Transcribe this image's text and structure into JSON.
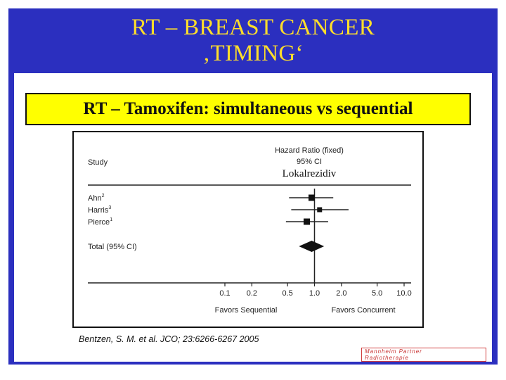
{
  "slide": {
    "title_line1": "RT – BREAST CANCER",
    "title_line2": "‚TIMING‘",
    "subtitle": "RT – Tamoxifen: simultaneous vs sequential",
    "citation": "Bentzen, S. M. et al. JCO; 23:6266-6267 2005",
    "logo_line1": "Mannheim Partner",
    "logo_line2": "Radiotherapie",
    "colors": {
      "background": "#2b2fbf",
      "title": "#ffde2a",
      "subtitle_box": "#ffff00",
      "content": "#ffffff"
    }
  },
  "chart_data": {
    "type": "forest",
    "column_header_left": "Study",
    "column_header_right_line1": "Hazard Ratio (fixed)",
    "column_header_right_line2": "95% CI",
    "annotation": "Lokalrezidiv",
    "scale": "log",
    "xlim": [
      0.1,
      10.0
    ],
    "xticks": [
      0.1,
      0.2,
      0.5,
      1.0,
      2.0,
      5.0,
      10.0
    ],
    "xtick_labels": [
      "0.1",
      "0.2",
      "0.5",
      "1.0",
      "2.0",
      "5.0",
      "10.0"
    ],
    "reference_line": 1.0,
    "xlabel_left": "Favors Sequential",
    "xlabel_right": "Favors Concurrent",
    "studies": [
      {
        "name": "Ahn",
        "ref": "2",
        "hr": 0.93,
        "ci_low": 0.52,
        "ci_high": 1.62
      },
      {
        "name": "Harris",
        "ref": "3",
        "hr": 1.14,
        "ci_low": 0.55,
        "ci_high": 2.4
      },
      {
        "name": "Pierce",
        "ref": "1",
        "hr": 0.82,
        "ci_low": 0.48,
        "ci_high": 1.42
      }
    ],
    "total": {
      "name": "Total (95% CI)",
      "hr": 0.93,
      "ci_low": 0.67,
      "ci_high": 1.28
    }
  }
}
